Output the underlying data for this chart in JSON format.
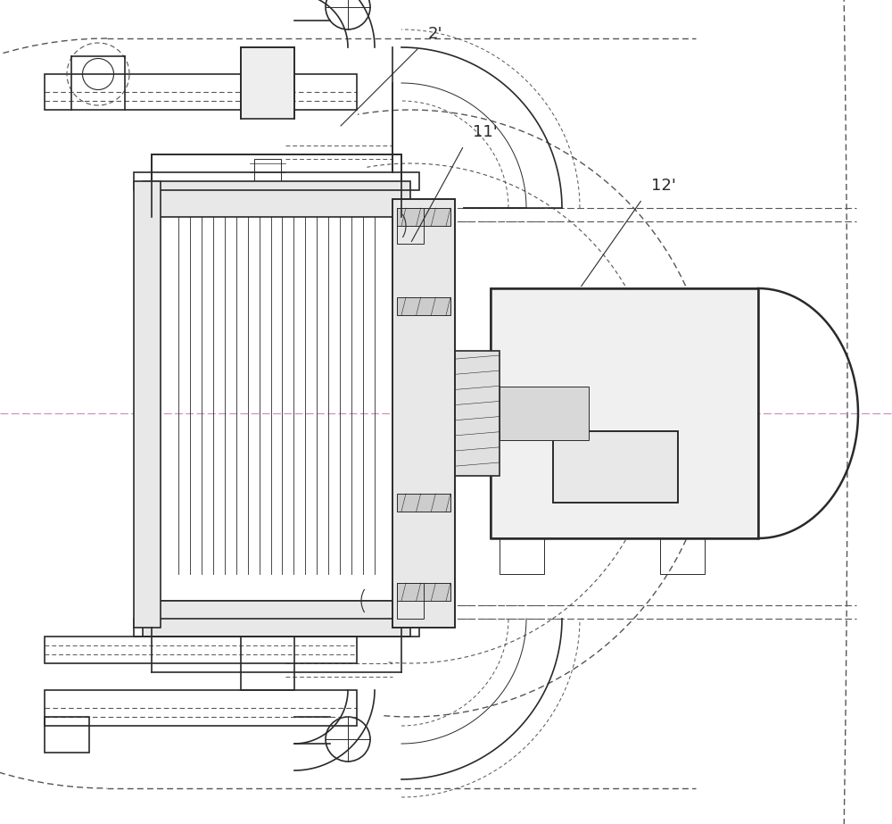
{
  "bg_color": "#ffffff",
  "line_color": "#2a2a2a",
  "dashed_color": "#555555",
  "pink_dashed": "#cc88bb",
  "label_2": "2'",
  "label_11": "11'",
  "label_12": "12'",
  "fig_width": 10.0,
  "fig_height": 9.23
}
